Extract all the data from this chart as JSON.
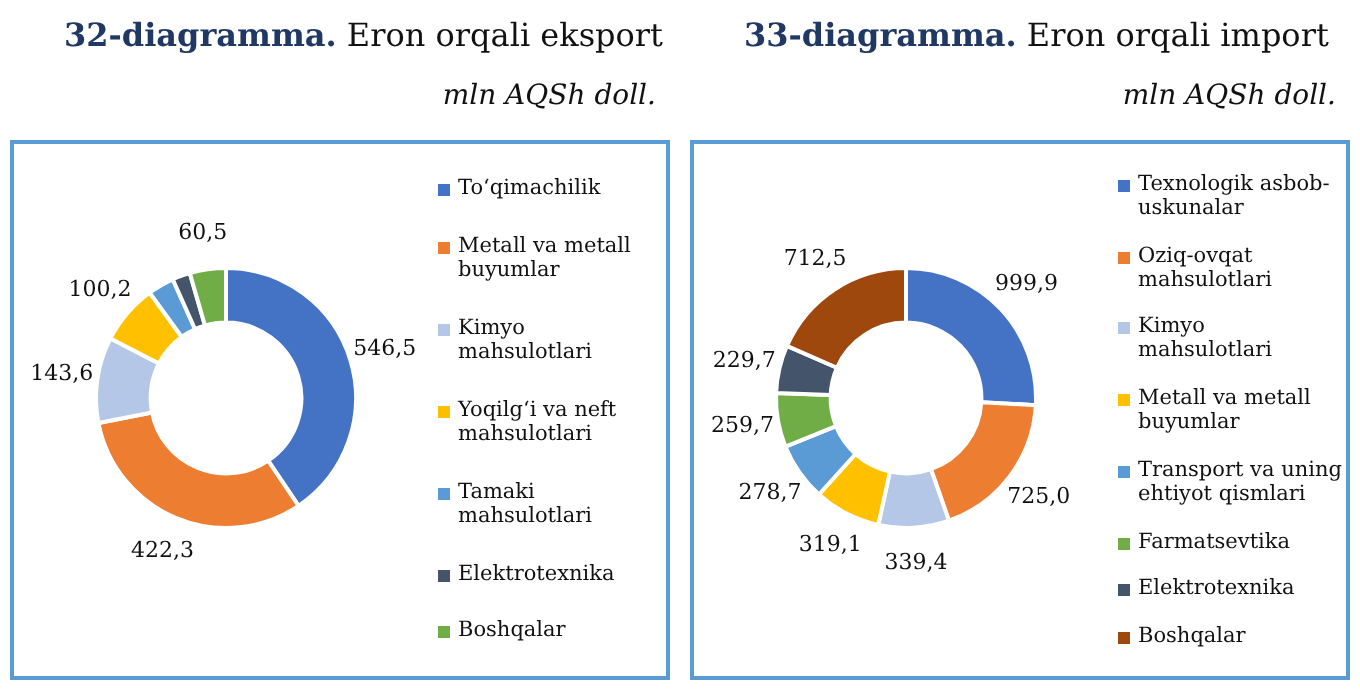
{
  "chart_data": [
    {
      "type": "donut",
      "title": "32-diagramma. Eron orqali eksport",
      "subtitle": "mln AQSh doll.",
      "legend": "right",
      "categories": [
        "To‘qimachilik",
        "Metall va metall buyumlar",
        "Kimyo mahsulotlari",
        "Yoqilg‘i va neft mahsulotlari",
        "Tamaki mahsulotlari",
        "Elektrotexnika",
        "Boshqalar"
      ],
      "values": [
        546.5,
        422.3,
        143.6,
        100.2,
        44,
        30,
        60.5
      ],
      "value_labels": [
        "546,5",
        "422,3",
        "143,6",
        "100,2",
        null,
        null,
        "60,5"
      ],
      "colors": [
        "#4472c4",
        "#ed7d31",
        "#b4c7e7",
        "#ffc000",
        "#5b9bd5",
        "#44546a",
        "#70ad47"
      ]
    },
    {
      "type": "donut",
      "title": "33-diagramma. Eron orqali import",
      "subtitle": "mln AQSh doll.",
      "legend": "right",
      "categories": [
        "Texnologik asbob-uskunalar",
        "Oziq-ovqat mahsulotlari",
        "Kimyo mahsulotlari",
        "Metall va metall buyumlar",
        "Transport va uning ehtiyot qismlari",
        "Farmatsevtika",
        "Elektrotexnika",
        "Boshqalar"
      ],
      "values": [
        999.9,
        725.0,
        339.4,
        319.1,
        278.7,
        259.7,
        229.7,
        712.5
      ],
      "value_labels": [
        "999,9",
        "725,0",
        "339,4",
        "319,1",
        "278,7",
        "259,7",
        "229,7",
        "712,5"
      ],
      "colors": [
        "#4472c4",
        "#ed7d31",
        "#b4c7e7",
        "#ffc000",
        "#5b9bd5",
        "#70ad47",
        "#44546a",
        "#9e480e"
      ]
    }
  ]
}
